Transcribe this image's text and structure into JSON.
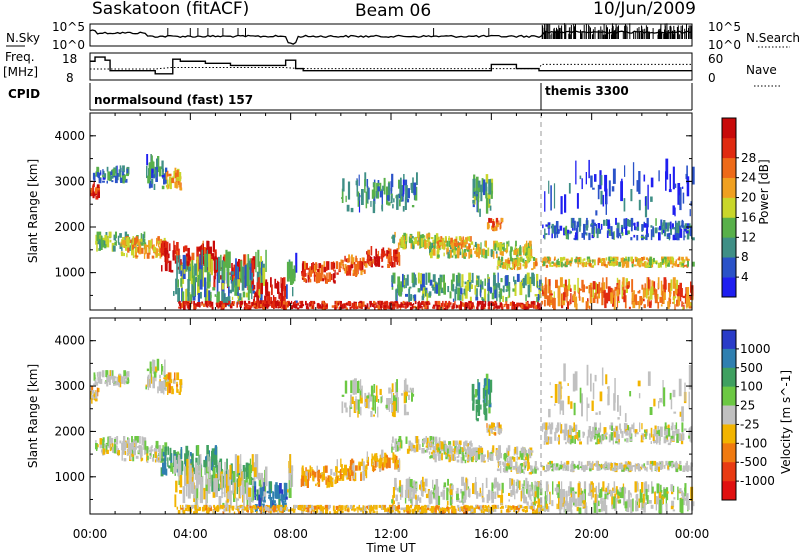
{
  "chart_data": {
    "type": "heatmap",
    "header": {
      "station": "Saskatoon (fitACF)",
      "beam": "Beam 06",
      "date": "10/Jun/2009"
    },
    "noise_panel": {
      "left_label": "N.Sky",
      "right_label": "N.Search",
      "left_ticks": [
        "10^5",
        "10^0"
      ],
      "right_ticks": [
        "10^5",
        "10^0"
      ]
    },
    "freq_panel": {
      "left_label_1": "Freq.",
      "left_label_2": "[MHz]",
      "right_label": "Nave",
      "left_ticks": [
        "18",
        "8"
      ],
      "right_ticks": [
        "60",
        "0"
      ],
      "freq_steps": [
        {
          "t": 0.0,
          "f": 15.5
        },
        {
          "t": 0.2,
          "f": 17.5
        },
        {
          "t": 0.6,
          "f": 16.0
        },
        {
          "t": 0.8,
          "f": 11.0
        },
        {
          "t": 2.6,
          "f": 9.5
        },
        {
          "t": 3.3,
          "f": 16.5
        },
        {
          "t": 3.6,
          "f": 15.5
        },
        {
          "t": 4.6,
          "f": 14.5
        },
        {
          "t": 5.6,
          "f": 13.5
        },
        {
          "t": 7.8,
          "f": 16.0
        },
        {
          "t": 8.2,
          "f": 12.0
        },
        {
          "t": 8.5,
          "f": 11.0
        },
        {
          "t": 12.6,
          "f": 11.0
        },
        {
          "t": 16.0,
          "f": 14.0
        },
        {
          "t": 17.0,
          "f": 12.0
        },
        {
          "t": 17.9,
          "f": 11.0
        },
        {
          "t": 24.0,
          "f": 11.0
        }
      ]
    },
    "cpid": {
      "label": "CPID",
      "programs": [
        {
          "name": "normalsound (fast) 157",
          "start": 0.0
        },
        {
          "name": "themis 3300",
          "start": 18.0
        }
      ]
    },
    "x_axis": {
      "label": "Time UT",
      "range": [
        0,
        24
      ],
      "ticks": [
        "00:00",
        "04:00",
        "08:00",
        "12:00",
        "16:00",
        "20:00",
        "00:00"
      ]
    },
    "power_panel": {
      "ylabel": "Slant Range [km]",
      "yrange": [
        180,
        4500
      ],
      "yticks": [
        1000,
        2000,
        3000,
        4000
      ],
      "colorbar_label": "Power [dB]",
      "colorbar_ticks": [
        "4",
        "8",
        "12",
        "16",
        "20",
        "24",
        "28"
      ],
      "colorbar_colors": [
        "#1f1ff0",
        "#2a52c8",
        "#3f8f86",
        "#58b04a",
        "#c9d62a",
        "#f0a020",
        "#ee6a18",
        "#e02a10",
        "#c80a0a"
      ]
    },
    "velocity_panel": {
      "ylabel": "Slant Range [km]",
      "yrange": [
        180,
        4500
      ],
      "yticks": [
        1000,
        2000,
        3000,
        4000
      ],
      "colorbar_label": "Velocity [m s^-1]",
      "colorbar_ticks": [
        "1000",
        "500",
        "100",
        "25",
        "-25",
        "-100",
        "-500",
        "-1000"
      ],
      "colorbar_colors": [
        "#2a3cc8",
        "#2f7fb0",
        "#3fa060",
        "#6cc843",
        "#c0c0c0",
        "#f2b400",
        "#f07a10",
        "#e83a12",
        "#e01010"
      ]
    },
    "echo_regions": [
      {
        "t0": 0.0,
        "t1": 0.3,
        "r0": 2600,
        "r1": 3000,
        "p": 24,
        "v": -100,
        "vis": 1
      },
      {
        "t0": 0.1,
        "t1": 1.5,
        "r0": 2950,
        "r1": 3350,
        "p": 8,
        "v": 25,
        "vis": 1
      },
      {
        "t0": 0.2,
        "t1": 2.2,
        "r0": 1450,
        "r1": 1900,
        "p": 12,
        "v": 25,
        "vis": 1
      },
      {
        "t0": 1.2,
        "t1": 3.0,
        "r0": 1300,
        "r1": 1800,
        "p": 18,
        "v": 25,
        "vis": 1
      },
      {
        "t0": 2.2,
        "t1": 3.0,
        "r0": 2800,
        "r1": 3600,
        "p": 8,
        "v": 25,
        "vis": 1
      },
      {
        "t0": 3.0,
        "t1": 3.6,
        "r0": 2800,
        "r1": 3300,
        "p": 18,
        "v": -100,
        "vis": 1
      },
      {
        "t0": 2.8,
        "t1": 5.0,
        "r0": 1000,
        "r1": 1700,
        "p": 26,
        "v": 100,
        "vis": 1
      },
      {
        "t0": 4.8,
        "t1": 6.5,
        "r0": 600,
        "r1": 1400,
        "p": 26,
        "v": 100,
        "vis": 1
      },
      {
        "t0": 3.3,
        "t1": 7.0,
        "r0": 250,
        "r1": 1500,
        "p": 10,
        "v": 25,
        "vis": 1
      },
      {
        "t0": 6.5,
        "t1": 7.8,
        "r0": 200,
        "r1": 900,
        "p": 28,
        "v": 500,
        "vis": 1
      },
      {
        "t0": 7.8,
        "t1": 8.2,
        "r0": 300,
        "r1": 1500,
        "p": 8,
        "v": 25,
        "vis": 0.5
      },
      {
        "t0": 8.4,
        "t1": 9.8,
        "r0": 750,
        "r1": 1250,
        "p": 24,
        "v": -100,
        "vis": 1
      },
      {
        "t0": 9.8,
        "t1": 11.0,
        "r0": 900,
        "r1": 1400,
        "p": 22,
        "v": -100,
        "vis": 1
      },
      {
        "t0": 11.0,
        "t1": 12.3,
        "r0": 1100,
        "r1": 1600,
        "p": 26,
        "v": -100,
        "vis": 1
      },
      {
        "t0": 12.0,
        "t1": 14.0,
        "r0": 1500,
        "r1": 1900,
        "p": 14,
        "v": 25,
        "vis": 1
      },
      {
        "t0": 13.5,
        "t1": 17.6,
        "r0": 1300,
        "r1": 1700,
        "p": 14,
        "v": 25,
        "vis": 1
      },
      {
        "t0": 13.8,
        "t1": 15.2,
        "r0": 1500,
        "r1": 1800,
        "p": 18,
        "v": 25,
        "vis": 1
      },
      {
        "t0": 15.2,
        "t1": 16.0,
        "r0": 2200,
        "r1": 3300,
        "p": 10,
        "v": 100,
        "vis": 1
      },
      {
        "t0": 15.8,
        "t1": 16.4,
        "r0": 1900,
        "r1": 2200,
        "p": 22,
        "v": -100,
        "vis": 1
      },
      {
        "t0": 16.2,
        "t1": 17.8,
        "r0": 1050,
        "r1": 1350,
        "p": 16,
        "v": 25,
        "vis": 1
      },
      {
        "t0": 10.0,
        "t1": 13.0,
        "r0": 2300,
        "r1": 3200,
        "p": 8,
        "v": 25,
        "vis": 0.7
      },
      {
        "t0": 12.0,
        "t1": 18.0,
        "r0": 350,
        "r1": 1000,
        "p": 10,
        "v": 25,
        "vis": 0.8
      },
      {
        "t0": 3.5,
        "t1": 18.0,
        "r0": 180,
        "r1": 380,
        "p": 26,
        "v": -100,
        "vis": 1
      },
      {
        "t0": 18.0,
        "t1": 24.0,
        "r0": 180,
        "r1": 900,
        "p": 20,
        "v": 25,
        "vis": 1
      },
      {
        "t0": 18.0,
        "t1": 24.0,
        "r0": 1100,
        "r1": 1350,
        "p": 16,
        "v": 25,
        "vis": 1
      },
      {
        "t0": 18.0,
        "t1": 24.0,
        "r0": 1700,
        "r1": 2200,
        "p": 6,
        "v": 25,
        "vis": 0.8
      },
      {
        "t0": 18.0,
        "t1": 24.0,
        "r0": 2200,
        "r1": 3500,
        "p": 4,
        "v": 25,
        "vis": 0.25
      }
    ]
  }
}
